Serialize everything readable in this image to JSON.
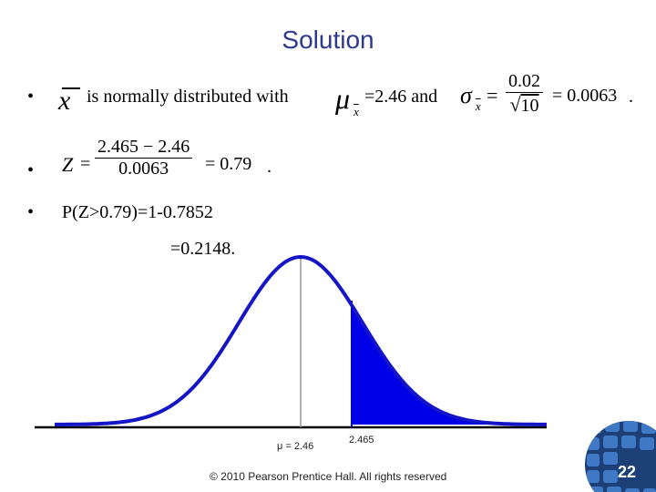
{
  "title": "Solution",
  "bullet1": {
    "symbol": "•",
    "xbar": "x",
    "text_a": "is normally distributed with",
    "mu": "μ",
    "mu_sub": "x",
    "text_b": "=2.46 and",
    "sigma": "σ",
    "sigma_sub": "x",
    "eq1": "=",
    "frac_num": "0.02",
    "frac_den": "10",
    "eq2": "= 0.0063",
    "period": "."
  },
  "bullet2": {
    "symbol": "•",
    "z": "Z",
    "eq1": "=",
    "frac_num": "2.465 − 2.46",
    "frac_den": "0.0063",
    "eq2": "= 0.79",
    "period": "."
  },
  "bullet3": {
    "symbol": "•",
    "line1": "P(Z>0.79)=1-0.7852",
    "line2": "=0.2148."
  },
  "curve": {
    "mean_label": "μ = 2.46",
    "cut_label": "2.465",
    "curve_color": "#1515c8",
    "fill_color": "#0000e6"
  },
  "footer": "© 2010 Pearson Prentice Hall. All rights reserved",
  "page_number": "22",
  "colors": {
    "title": "#2b3990",
    "globe_dark": "#1d3f78",
    "globe_light": "#3f78c4"
  }
}
